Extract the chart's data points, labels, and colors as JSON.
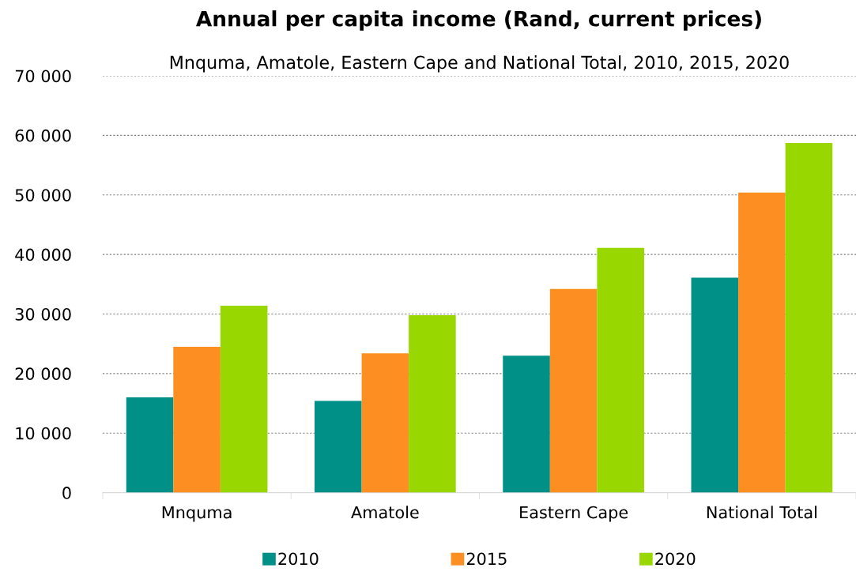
{
  "chart_data": {
    "type": "bar",
    "title": "Annual per capita income (Rand, current prices)",
    "subtitle": "Mnquma, Amatole, Eastern Cape and National Total, 2010, 2015, 2020",
    "categories": [
      "Mnquma",
      "Amatole",
      "Eastern Cape",
      "National Total"
    ],
    "series": [
      {
        "name": "2010",
        "color": "#009087",
        "values": [
          16000,
          15400,
          23000,
          36100
        ]
      },
      {
        "name": "2015",
        "color": "#fd8f22",
        "values": [
          24500,
          23400,
          34200,
          50400
        ]
      },
      {
        "name": "2020",
        "color": "#99d700",
        "values": [
          31400,
          29800,
          41100,
          58700
        ]
      }
    ],
    "ylim": [
      0,
      70000
    ],
    "yticks": [
      {
        "value": 0,
        "label": "0"
      },
      {
        "value": 10000,
        "label": "10 000"
      },
      {
        "value": 20000,
        "label": "20 000"
      },
      {
        "value": 30000,
        "label": "30 000"
      },
      {
        "value": 40000,
        "label": "40 000"
      },
      {
        "value": 50000,
        "label": "50 000"
      },
      {
        "value": 60000,
        "label": "60 000"
      },
      {
        "value": 70000,
        "label": "70 000"
      }
    ],
    "grid": "y",
    "legend": "bottom"
  }
}
